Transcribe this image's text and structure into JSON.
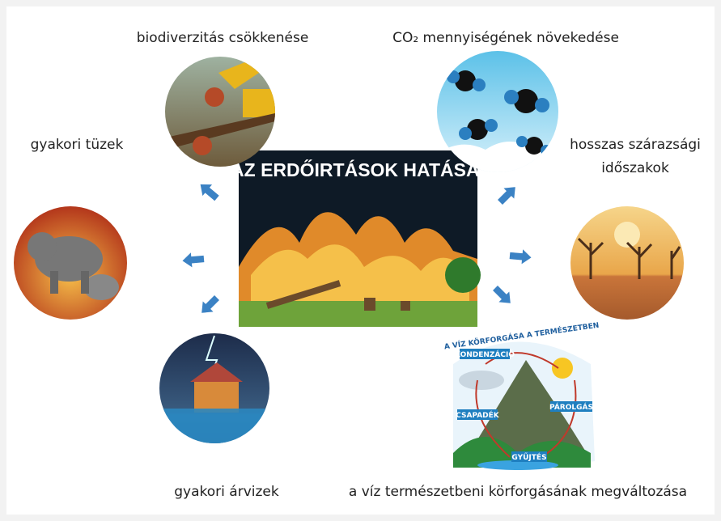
{
  "center": {
    "title": "AZ ERDŐIRTÁSOK HATÁSAI"
  },
  "nodes": [
    {
      "label": [
        "biodiverzitás csökkenése"
      ]
    },
    {
      "label": [
        "CO₂ mennyiségének növekedése"
      ]
    },
    {
      "label": [
        "gyakori tüzek"
      ]
    },
    {
      "label": [
        "hosszas szárazsági",
        "időszakok"
      ]
    },
    {
      "label": [
        "gyakori árvizek"
      ]
    },
    {
      "label": [
        "a víz természetbeni körforgásának megváltozása"
      ]
    }
  ],
  "water_cycle": {
    "title": "A VÍZ KÖRFORGÁSA A TERMÉSZETBEN",
    "steps": [
      "KONDENZÁCIÓ",
      "PÁROLGÁS",
      "CSAPADÉK",
      "GYŰJTÉS"
    ]
  }
}
